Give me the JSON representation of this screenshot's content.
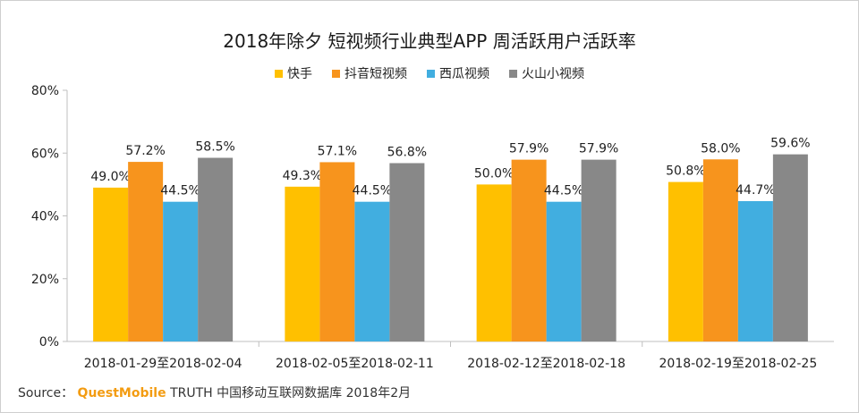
{
  "chart_data": {
    "type": "bar",
    "title": "2018年除夕 短视频行业典型APP 周活跃用户活跃率",
    "categories": [
      "2018-01-29至2018-02-04",
      "2018-02-05至2018-02-11",
      "2018-02-12至2018-02-18",
      "2018-02-19至2018-02-25"
    ],
    "series": [
      {
        "name": "快手",
        "values": [
          49.0,
          49.3,
          50.0,
          50.8
        ],
        "color": "#ffc000"
      },
      {
        "name": "抖音短视频",
        "values": [
          57.2,
          57.1,
          57.9,
          58.0
        ],
        "color": "#f7941d"
      },
      {
        "name": "西瓜视频",
        "values": [
          44.5,
          44.5,
          44.5,
          44.7
        ],
        "color": "#41aee0"
      },
      {
        "name": "火山小视频",
        "values": [
          58.5,
          56.8,
          57.9,
          59.6
        ],
        "color": "#888888"
      }
    ],
    "ylim": [
      0,
      80
    ],
    "yticks": [
      "0%",
      "20%",
      "40%",
      "60%",
      "80%"
    ],
    "legend_position": "top-center",
    "grid": false
  },
  "source": {
    "prefix": "Source：",
    "brand": "QuestMobile",
    "suffix": " TRUTH 中国移动互联网数据库 2018年2月"
  }
}
